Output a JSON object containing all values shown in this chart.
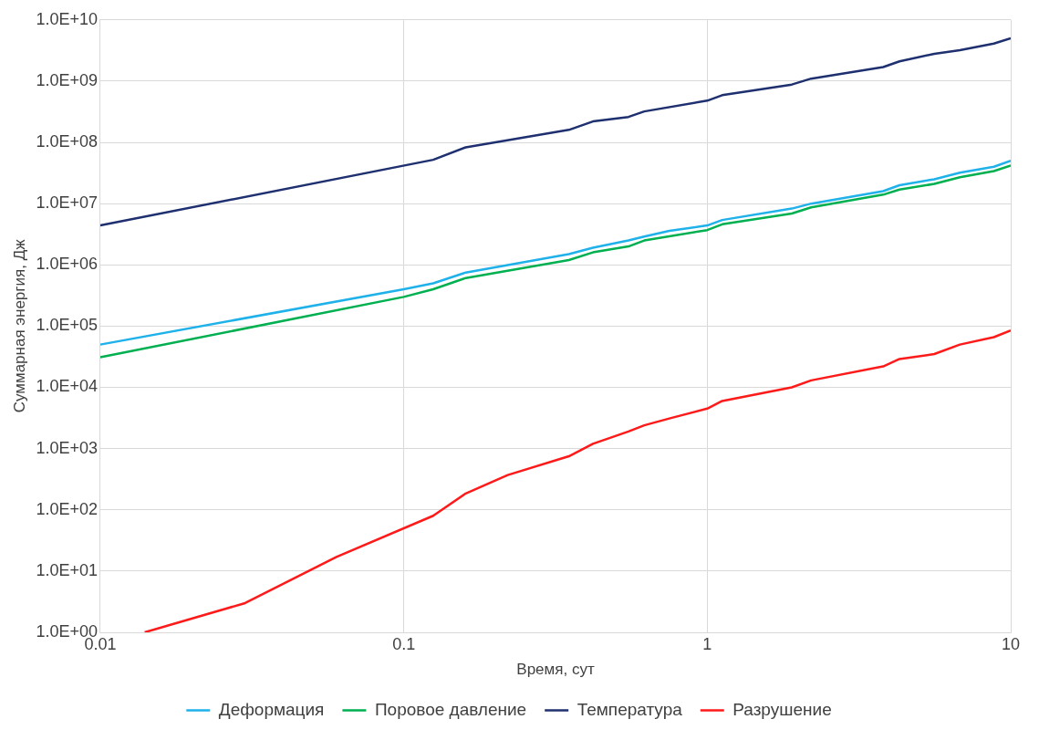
{
  "chart_data": {
    "type": "line",
    "xlabel": "Время, сут",
    "ylabel": "Суммарная энергия, Дж",
    "log": "xy",
    "grid": true,
    "legend": "bottom",
    "marker": "none",
    "line_style": "solid",
    "xlim": [
      0.01,
      10
    ],
    "xticks": [
      0.01,
      0.1,
      1,
      10
    ],
    "ylim": [
      1,
      10000000000
    ],
    "yticks": [
      {
        "value": 1,
        "label": "1.0E+00"
      },
      {
        "value": 10,
        "label": "1.0E+01"
      },
      {
        "value": 100,
        "label": "1.0E+02"
      },
      {
        "value": 1000,
        "label": "1.0E+03"
      },
      {
        "value": 10000,
        "label": "1.0E+04"
      },
      {
        "value": 100000,
        "label": "1.0E+05"
      },
      {
        "value": 1000000,
        "label": "1.0E+06"
      },
      {
        "value": 10000000,
        "label": "1.0E+07"
      },
      {
        "value": 100000000,
        "label": "1.0E+08"
      },
      {
        "value": 1000000000,
        "label": "1.0E+09"
      },
      {
        "value": 10000000000,
        "label": "1.0E+10"
      }
    ],
    "series": [
      {
        "name": "Деформация",
        "color": "#1fb1ea",
        "x": [
          0.01,
          0.1,
          0.125,
          0.16,
          0.35,
          0.42,
          0.55,
          0.62,
          0.75,
          1,
          1.12,
          1.9,
          2.2,
          3.8,
          4.3,
          5.6,
          6.8,
          8.8,
          10
        ],
        "values": [
          50000,
          400000,
          500000,
          750000,
          1500000,
          1900000,
          2500000,
          2900000,
          3600000,
          4400000,
          5400000,
          8300000,
          10000000,
          16000000,
          20000000,
          25000000,
          32000000,
          40000000,
          50000000
        ]
      },
      {
        "name": "Поровое давление",
        "color": "#00b050",
        "x": [
          0.01,
          0.1,
          0.125,
          0.16,
          0.35,
          0.42,
          0.55,
          0.62,
          1,
          1.12,
          1.9,
          2.2,
          3.8,
          4.3,
          5.6,
          6.8,
          8.8,
          10
        ],
        "values": [
          31000,
          300000,
          400000,
          610000,
          1200000,
          1600000,
          2000000,
          2500000,
          3700000,
          4600000,
          6900000,
          8700000,
          14000000,
          17000000,
          21000000,
          27000000,
          34000000,
          42000000
        ]
      },
      {
        "name": "Температура",
        "color": "#1f3070",
        "x": [
          0.01,
          0.125,
          0.16,
          0.35,
          0.42,
          0.55,
          0.62,
          1,
          1.12,
          1.9,
          2.2,
          3.8,
          4.3,
          5.6,
          6.8,
          8.8,
          10
        ],
        "values": [
          4400000,
          52000000,
          83000000,
          160000000,
          220000000,
          260000000,
          320000000,
          480000000,
          590000000,
          880000000,
          1100000000,
          1700000000,
          2100000000,
          2800000000,
          3200000000,
          4100000000,
          5000000000
        ]
      },
      {
        "name": "Разрушение",
        "color": "#ff1a1a",
        "x": [
          0.014,
          0.03,
          0.06,
          0.125,
          0.16,
          0.22,
          0.35,
          0.42,
          0.55,
          0.62,
          0.75,
          1,
          1.12,
          1.9,
          2.2,
          3.8,
          4.3,
          5.6,
          6.8,
          8.8,
          10
        ],
        "values": [
          1,
          3,
          17,
          80,
          185,
          370,
          750,
          1200,
          1900,
          2400,
          3100,
          4500,
          6000,
          10000,
          13000,
          22000,
          29000,
          35000,
          50000,
          66000,
          85000
        ]
      }
    ]
  }
}
